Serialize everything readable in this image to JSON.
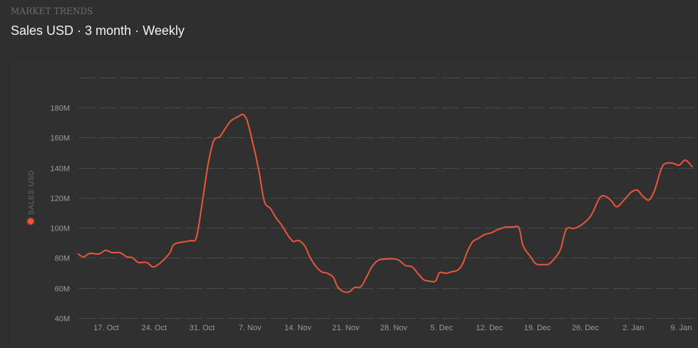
{
  "header": {
    "kicker": "MARKET TRENDS",
    "title": "Sales USD · 3 month · Weekly"
  },
  "colors": {
    "background": "#2f2f2f",
    "series": "#e8573a",
    "grid": "#4a4a4a",
    "tick_label": "#9a9a9a"
  },
  "legend": {
    "label": "SALES USD",
    "marker_color": "#f0532f"
  },
  "chart_data": {
    "type": "line",
    "title": "Sales USD · 3 month · Weekly",
    "xlabel": "",
    "ylabel": "SALES USD",
    "ylim": [
      40,
      200
    ],
    "y_ticks": [
      {
        "value": 40,
        "label": "40M"
      },
      {
        "value": 60,
        "label": "60M"
      },
      {
        "value": 80,
        "label": "80M"
      },
      {
        "value": 100,
        "label": "100M"
      },
      {
        "value": 120,
        "label": "120M"
      },
      {
        "value": 140,
        "label": "140M"
      },
      {
        "value": 160,
        "label": "160M"
      },
      {
        "value": 180,
        "label": "180M"
      },
      {
        "value": 200,
        "label": ""
      }
    ],
    "x_ticks": [
      "17. Oct",
      "24. Oct",
      "31. Oct",
      "7. Nov",
      "14. Nov",
      "21. Nov",
      "28. Nov",
      "5. Dec",
      "12. Dec",
      "19. Dec",
      "26. Dec",
      "2. Jan",
      "9. Jan"
    ],
    "x_range_days": [
      -4,
      85
    ],
    "grid": true,
    "grid_style": "dashed",
    "legend_position": "left-vertical",
    "series": [
      {
        "name": "Sales USD",
        "unit": "M USD",
        "points_day_offset_from_17_Oct": [
          [
            -4.1,
            82.6
          ],
          [
            -3.3,
            80.7
          ],
          [
            -2.4,
            83.0
          ],
          [
            -1.1,
            82.6
          ],
          [
            -0.1,
            85.0
          ],
          [
            0.9,
            83.5
          ],
          [
            2.0,
            83.5
          ],
          [
            3.0,
            80.7
          ],
          [
            3.8,
            80.2
          ],
          [
            4.7,
            77.0
          ],
          [
            5.9,
            77.0
          ],
          [
            6.8,
            74.0
          ],
          [
            7.6,
            75.6
          ],
          [
            8.5,
            79.3
          ],
          [
            9.3,
            83.5
          ],
          [
            9.9,
            89.0
          ],
          [
            11.2,
            90.6
          ],
          [
            12.4,
            91.5
          ],
          [
            13.2,
            94.0
          ],
          [
            14.1,
            119.0
          ],
          [
            14.9,
            142.6
          ],
          [
            15.7,
            157.8
          ],
          [
            16.6,
            160.6
          ],
          [
            17.4,
            166.0
          ],
          [
            18.2,
            171.0
          ],
          [
            19.3,
            174.0
          ],
          [
            20.0,
            175.3
          ],
          [
            20.6,
            171.0
          ],
          [
            21.4,
            156.8
          ],
          [
            22.3,
            138.0
          ],
          [
            23.1,
            117.6
          ],
          [
            24.0,
            112.8
          ],
          [
            24.8,
            106.7
          ],
          [
            25.6,
            102.0
          ],
          [
            26.5,
            95.4
          ],
          [
            27.3,
            91.0
          ],
          [
            28.1,
            91.6
          ],
          [
            29.0,
            88.0
          ],
          [
            29.8,
            80.2
          ],
          [
            30.7,
            74.0
          ],
          [
            31.5,
            70.7
          ],
          [
            32.3,
            69.8
          ],
          [
            33.2,
            67.0
          ],
          [
            33.8,
            60.8
          ],
          [
            34.7,
            57.5
          ],
          [
            35.5,
            57.5
          ],
          [
            36.3,
            60.4
          ],
          [
            37.2,
            60.8
          ],
          [
            38.0,
            67.0
          ],
          [
            38.8,
            74.0
          ],
          [
            39.7,
            78.3
          ],
          [
            40.9,
            79.3
          ],
          [
            42.2,
            79.3
          ],
          [
            42.8,
            78.3
          ],
          [
            43.7,
            75.0
          ],
          [
            44.7,
            74.0
          ],
          [
            45.6,
            69.3
          ],
          [
            46.4,
            65.5
          ],
          [
            47.2,
            64.6
          ],
          [
            48.1,
            64.6
          ],
          [
            48.7,
            70.2
          ],
          [
            49.6,
            69.8
          ],
          [
            50.4,
            70.7
          ],
          [
            51.4,
            72.0
          ],
          [
            52.1,
            76.4
          ],
          [
            52.7,
            83.5
          ],
          [
            53.5,
            90.6
          ],
          [
            54.4,
            93.0
          ],
          [
            55.2,
            95.4
          ],
          [
            56.3,
            96.8
          ],
          [
            57.3,
            99.0
          ],
          [
            58.4,
            100.5
          ],
          [
            59.4,
            100.5
          ],
          [
            60.3,
            100.0
          ],
          [
            60.9,
            88.2
          ],
          [
            62.0,
            80.7
          ],
          [
            62.8,
            76.0
          ],
          [
            63.9,
            75.6
          ],
          [
            64.7,
            76.0
          ],
          [
            65.6,
            80.2
          ],
          [
            66.4,
            86.0
          ],
          [
            67.2,
            99.0
          ],
          [
            68.3,
            99.6
          ],
          [
            69.1,
            101.0
          ],
          [
            70.2,
            104.8
          ],
          [
            71.0,
            109.5
          ],
          [
            72.1,
            120.0
          ],
          [
            72.9,
            121.0
          ],
          [
            73.8,
            118.0
          ],
          [
            74.6,
            114.0
          ],
          [
            75.7,
            118.7
          ],
          [
            76.7,
            123.7
          ],
          [
            77.6,
            125.0
          ],
          [
            78.4,
            121.0
          ],
          [
            79.3,
            118.5
          ],
          [
            80.1,
            124.7
          ],
          [
            81.0,
            138.0
          ],
          [
            81.6,
            142.6
          ],
          [
            82.7,
            143.0
          ],
          [
            83.7,
            141.7
          ],
          [
            84.6,
            145.0
          ],
          [
            85.6,
            140.7
          ]
        ]
      }
    ]
  }
}
